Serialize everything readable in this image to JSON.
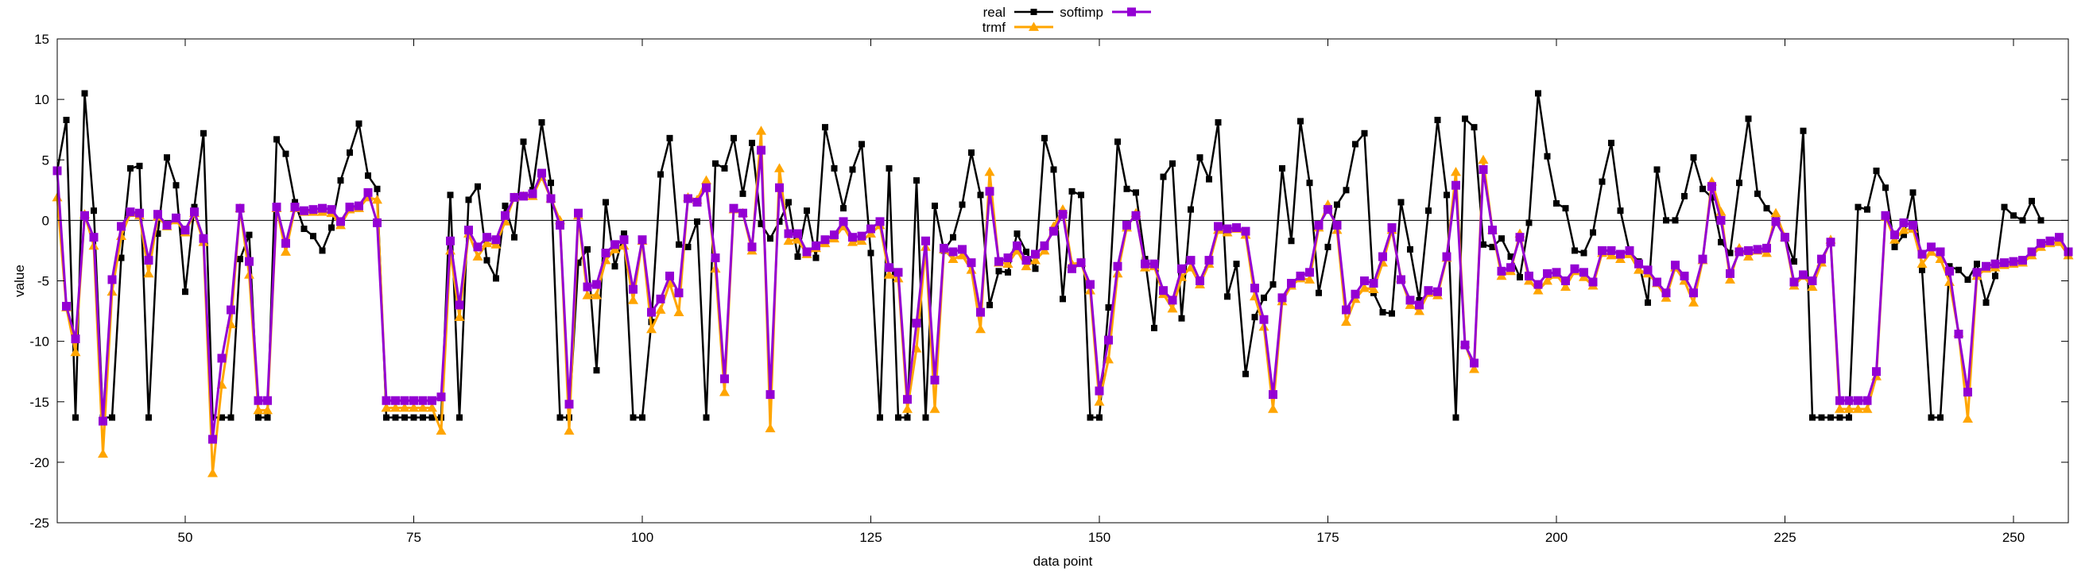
{
  "chart_data": {
    "type": "line",
    "xlabel": "data point",
    "ylabel": "value",
    "xlim": [
      36,
      256
    ],
    "ylim": [
      -25,
      15
    ],
    "xticks": [
      50,
      75,
      100,
      125,
      150,
      175,
      200,
      225,
      250
    ],
    "yticks": [
      -25,
      -20,
      -15,
      -10,
      -5,
      0,
      5,
      10,
      15
    ],
    "zero_line": true,
    "grid": false,
    "legend_position": "top-center",
    "x_start": 36,
    "series": [
      {
        "name": "real",
        "color": "#000000",
        "marker": "square",
        "values": [
          4.1,
          8.3,
          -16.3,
          10.5,
          0.8,
          -16.3,
          -16.3,
          -3.1,
          4.3,
          4.5,
          -16.3,
          -1.1,
          5.2,
          2.9,
          -5.9,
          1.1,
          7.2,
          -16.3,
          -16.3,
          -16.3,
          -3.2,
          -1.2,
          -16.3,
          -16.3,
          6.7,
          5.5,
          1.5,
          -0.7,
          -1.3,
          -2.5,
          -0.6,
          3.3,
          5.6,
          8.0,
          3.7,
          2.6,
          -16.3,
          -16.3,
          -16.3,
          -16.3,
          -16.3,
          -16.3,
          -16.3,
          2.1,
          -16.3,
          1.7,
          2.8,
          -3.3,
          -4.8,
          1.2,
          -1.4,
          6.5,
          2.5,
          8.1,
          3.1,
          -16.3,
          -16.3,
          -3.5,
          -2.4,
          -12.4,
          1.5,
          -3.8,
          -1.1,
          -16.3,
          -16.3,
          -8.4,
          3.8,
          6.8,
          -2.0,
          -2.2,
          -0.1,
          -16.3,
          4.7,
          4.3,
          6.8,
          2.2,
          6.4,
          -0.3,
          -1.5,
          -0.1,
          1.5,
          -3.0,
          0.8,
          -3.1,
          7.7,
          4.3,
          1.0,
          4.2,
          6.3,
          -2.7,
          -16.3,
          4.3,
          -16.3,
          -16.3,
          3.3,
          -16.3,
          1.2,
          -2.5,
          -1.4,
          1.3,
          5.6,
          2.1,
          -7.0,
          -4.2,
          -4.3,
          -1.1,
          -2.6,
          -4.0,
          6.8,
          4.2,
          -6.5,
          2.4,
          2.1,
          -16.3,
          -16.3,
          -7.2,
          6.5,
          2.6,
          2.3,
          -3.2,
          -8.9,
          3.6,
          4.7,
          -8.1,
          0.9,
          5.2,
          3.4,
          8.1,
          -6.3,
          -3.6,
          -12.7,
          -8.0,
          -6.4,
          -5.3,
          4.3,
          -1.7,
          8.2,
          3.1,
          -6.0,
          -2.2,
          1.3,
          2.5,
          6.3,
          7.2,
          -6.0,
          -7.6,
          -7.7,
          1.5,
          -2.4,
          -6.6,
          0.8,
          8.3,
          2.1,
          -16.3,
          8.4,
          7.7,
          -2.0,
          -2.2,
          -1.5,
          -3.0,
          -4.7,
          -0.2,
          10.5,
          5.3,
          1.4,
          1.0,
          -2.5,
          -2.7,
          -1.0,
          3.2,
          6.4,
          0.8,
          -2.6,
          -3.4,
          -6.8,
          4.2,
          0.0,
          0.0,
          2.0,
          5.2,
          2.6,
          1.9,
          -1.8,
          -2.7,
          3.1,
          8.4,
          2.2,
          1.0,
          0.2,
          -1.3,
          -3.4,
          7.4,
          -16.3,
          -16.3,
          -16.3,
          -16.3,
          -16.3,
          1.1,
          0.9,
          4.1,
          2.7,
          -2.2,
          -1.2,
          2.3,
          -4.1,
          -16.3,
          -16.3,
          -3.8,
          -4.1,
          -4.9,
          -3.6,
          -6.8,
          -4.6,
          1.1,
          0.4,
          0.0,
          1.6,
          0.0
        ]
      },
      {
        "name": "trmf",
        "color": "#ffa500",
        "marker": "triangle",
        "values": [
          1.9,
          -7.2,
          -10.9,
          0.5,
          -2.1,
          -19.3,
          -5.9,
          -1.3,
          0.6,
          0.4,
          -4.4,
          0.3,
          -0.5,
          0.0,
          -1.0,
          0.6,
          -1.8,
          -20.9,
          -13.6,
          -8.6,
          1.0,
          -4.5,
          -15.7,
          -15.7,
          1.0,
          -2.6,
          1.0,
          0.7,
          0.7,
          0.7,
          0.6,
          -0.4,
          0.9,
          1.0,
          1.9,
          1.7,
          -15.5,
          -15.5,
          -15.5,
          -15.5,
          -15.5,
          -15.5,
          -17.4,
          -2.5,
          -8.0,
          -1.1,
          -3.0,
          -1.9,
          -2.0,
          -0.1,
          1.9,
          2.0,
          2.0,
          3.6,
          1.8,
          0.0,
          -17.4,
          0.4,
          -6.2,
          -6.2,
          -3.3,
          -2.4,
          -2.1,
          -6.6,
          -1.7,
          -9.0,
          -7.4,
          -5.2,
          -7.6,
          1.9,
          1.7,
          3.3,
          -4.0,
          -14.2,
          0.9,
          0.6,
          -2.5,
          7.4,
          -17.2,
          4.3,
          -1.7,
          -1.6,
          -2.8,
          -2.3,
          -1.9,
          -1.5,
          -0.5,
          -1.8,
          -1.7,
          -1.1,
          -0.4,
          -4.5,
          -4.8,
          -15.6,
          -10.6,
          -2.2,
          -15.6,
          -2.4,
          -3.2,
          -2.9,
          -4.1,
          -9.0,
          4.0,
          -3.5,
          -3.6,
          -2.5,
          -3.8,
          -3.3,
          -2.5,
          -0.5,
          0.9,
          -3.6,
          -3.5,
          -5.8,
          -15.0,
          -11.5,
          -4.4,
          -0.6,
          0.6,
          -3.9,
          -3.8,
          -6.1,
          -7.3,
          -4.7,
          -3.9,
          -5.3,
          -3.6,
          -0.8,
          -1.0,
          -0.7,
          -1.2,
          -6.3,
          -8.8,
          -15.6,
          -6.7,
          -5.4,
          -4.8,
          -4.9,
          -0.6,
          1.3,
          -0.8,
          -8.4,
          -6.5,
          -5.6,
          -5.7,
          -3.5,
          -0.8,
          -4.8,
          -7.0,
          -7.5,
          -6.0,
          -6.2,
          -3.1,
          4.0,
          -10.2,
          -12.3,
          5.0,
          -0.8,
          -4.6,
          -4.2,
          -1.1,
          -5.0,
          -5.8,
          -5.0,
          -4.5,
          -5.5,
          -4.2,
          -4.7,
          -5.4,
          -2.7,
          -2.9,
          -3.2,
          -2.8,
          -4.1,
          -4.4,
          -5.2,
          -6.4,
          -3.9,
          -5.0,
          -6.8,
          -3.3,
          3.2,
          0.7,
          -4.9,
          -2.3,
          -3.0,
          -2.5,
          -2.7,
          0.6,
          -1.4,
          -5.4,
          -4.6,
          -5.5,
          -3.5,
          -1.6,
          -15.6,
          -15.6,
          -15.6,
          -15.6,
          -12.9,
          0.3,
          -1.6,
          -0.8,
          -0.7,
          -3.6,
          -2.6,
          -3.2,
          -5.1,
          -9.3,
          -16.4,
          -4.6,
          -4.0,
          -3.9,
          -3.7,
          -3.6,
          -3.5,
          -2.9,
          -2.2,
          -1.9,
          -1.8,
          -2.9
        ]
      },
      {
        "name": "softimp",
        "color": "#9400d3",
        "marker": "square",
        "values": [
          4.1,
          -7.1,
          -9.8,
          0.4,
          -1.4,
          -16.6,
          -4.9,
          -0.5,
          0.7,
          0.6,
          -3.3,
          0.5,
          -0.4,
          0.2,
          -0.8,
          0.7,
          -1.5,
          -18.1,
          -11.4,
          -7.4,
          1.0,
          -3.4,
          -14.9,
          -14.9,
          1.1,
          -1.9,
          1.1,
          0.8,
          0.9,
          1.0,
          0.9,
          -0.1,
          1.1,
          1.2,
          2.3,
          -0.2,
          -14.9,
          -14.9,
          -14.9,
          -14.9,
          -14.9,
          -14.9,
          -14.6,
          -1.7,
          -7.0,
          -0.8,
          -2.2,
          -1.4,
          -1.6,
          0.4,
          1.9,
          2.0,
          2.2,
          3.9,
          1.8,
          -0.4,
          -15.2,
          0.6,
          -5.5,
          -5.3,
          -2.7,
          -2.0,
          -1.6,
          -5.7,
          -1.6,
          -7.6,
          -6.5,
          -4.6,
          -6.0,
          1.8,
          1.5,
          2.7,
          -3.1,
          -13.1,
          1.0,
          0.6,
          -2.2,
          5.8,
          -14.4,
          2.7,
          -1.1,
          -1.1,
          -2.6,
          -2.1,
          -1.6,
          -1.2,
          -0.1,
          -1.4,
          -1.3,
          -0.7,
          -0.1,
          -3.9,
          -4.3,
          -14.8,
          -8.5,
          -1.7,
          -13.2,
          -2.3,
          -2.6,
          -2.4,
          -3.5,
          -7.6,
          2.4,
          -3.4,
          -3.1,
          -2.1,
          -3.3,
          -2.8,
          -2.1,
          -0.9,
          0.5,
          -4.0,
          -3.5,
          -5.3,
          -14.1,
          -9.9,
          -3.8,
          -0.4,
          0.4,
          -3.6,
          -3.6,
          -5.8,
          -6.6,
          -4.0,
          -3.3,
          -5.0,
          -3.3,
          -0.5,
          -0.7,
          -0.6,
          -0.9,
          -5.6,
          -8.2,
          -14.4,
          -6.4,
          -5.2,
          -4.6,
          -4.3,
          -0.4,
          0.9,
          -0.4,
          -7.4,
          -6.1,
          -5.0,
          -5.2,
          -3.0,
          -0.6,
          -4.9,
          -6.6,
          -7.0,
          -5.8,
          -5.9,
          -3.0,
          2.9,
          -10.3,
          -11.8,
          4.2,
          -0.8,
          -4.2,
          -3.9,
          -1.4,
          -4.6,
          -5.3,
          -4.4,
          -4.3,
          -5.0,
          -4.0,
          -4.3,
          -5.1,
          -2.5,
          -2.5,
          -2.8,
          -2.5,
          -3.6,
          -4.1,
          -5.1,
          -6.0,
          -3.7,
          -4.6,
          -6.0,
          -3.2,
          2.8,
          0.0,
          -4.4,
          -2.6,
          -2.5,
          -2.4,
          -2.3,
          -0.1,
          -1.4,
          -5.1,
          -4.5,
          -5.0,
          -3.2,
          -1.8,
          -14.9,
          -14.9,
          -14.9,
          -14.9,
          -12.5,
          0.4,
          -1.2,
          -0.2,
          -0.4,
          -2.8,
          -2.2,
          -2.6,
          -4.2,
          -9.4,
          -14.2,
          -4.3,
          -3.8,
          -3.6,
          -3.5,
          -3.4,
          -3.3,
          -2.6,
          -1.9,
          -1.7,
          -1.4,
          -2.6
        ]
      }
    ]
  }
}
